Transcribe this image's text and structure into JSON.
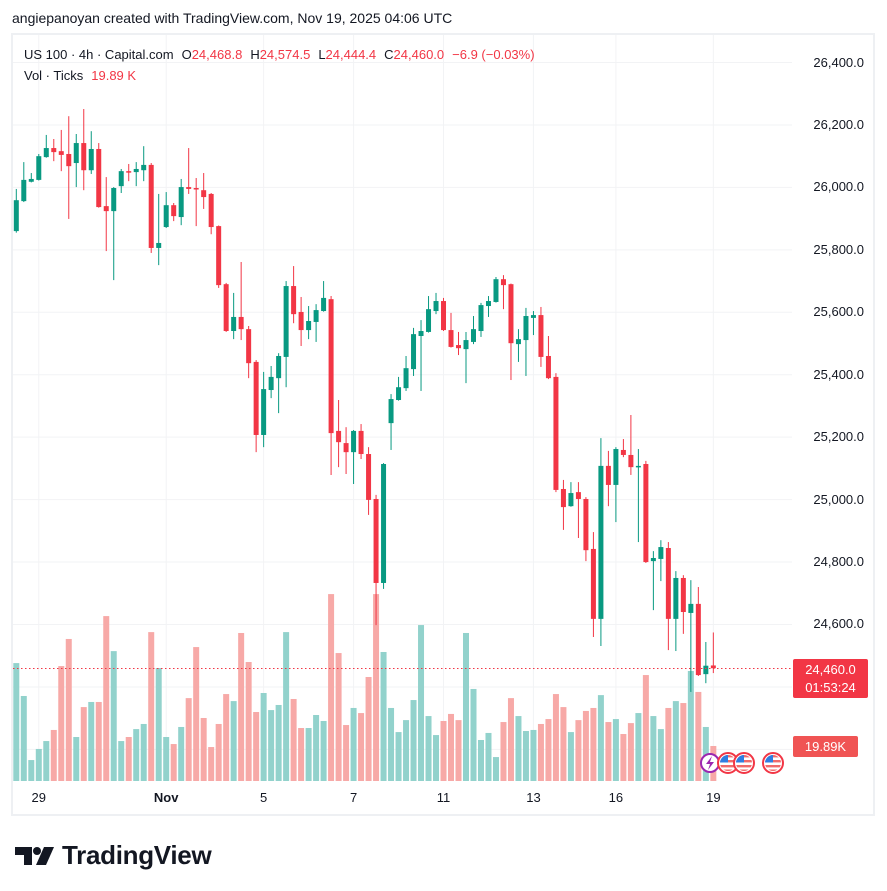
{
  "header": {
    "attribution": "angiepanoyan created with TradingView.com, Nov 19, 2025 04:06 UTC"
  },
  "legend": {
    "symbol": "US 100 · 4h · Capital.com",
    "ohlc": [
      {
        "label": "O",
        "value": "24,468.8"
      },
      {
        "label": "H",
        "value": "24,574.5"
      },
      {
        "label": "L",
        "value": "24,444.4"
      },
      {
        "label": "C",
        "value": "24,460.0"
      }
    ],
    "change": "−6.9 (−0.03%)",
    "volume_label": "Vol · Ticks",
    "volume_value": "19.89 K"
  },
  "price_axis": {
    "ticks": [
      "26,400.0",
      "26,200.0",
      "26,000.0",
      "25,800.0",
      "25,600.0",
      "25,400.0",
      "25,200.0",
      "25,000.0",
      "24,800.0",
      "24,600.0"
    ]
  },
  "time_axis": {
    "ticks": [
      {
        "label": "29",
        "index": 3,
        "bold": false
      },
      {
        "label": "Nov",
        "index": 20,
        "bold": true
      },
      {
        "label": "5",
        "index": 33,
        "bold": false
      },
      {
        "label": "7",
        "index": 45,
        "bold": false
      },
      {
        "label": "11",
        "index": 57,
        "bold": false
      },
      {
        "label": "13",
        "index": 69,
        "bold": false
      },
      {
        "label": "16",
        "index": 80,
        "bold": false
      },
      {
        "label": "19",
        "index": 93,
        "bold": false
      }
    ]
  },
  "current_price": {
    "value": "24,460.0",
    "countdown": "01:53:24"
  },
  "volume_badge": "19.89K",
  "events": [
    {
      "icon": "lightning-icon",
      "x": 699
    },
    {
      "icon": "us-flag-icon",
      "x": 717
    },
    {
      "icon": "us-flag-icon",
      "x": 733
    },
    {
      "icon": "us-flag-icon",
      "x": 762
    }
  ],
  "branding": {
    "logo_text": "TradingView"
  },
  "colors": {
    "up": "#089981",
    "down": "#f23645",
    "volume_up": "#92d2cc",
    "volume_down": "#f7a9a7",
    "price_line": "#f23645",
    "grid": "#f2f3f5"
  },
  "chart_data": {
    "type": "candlestick",
    "title": "US 100 · 4h · Capital.com",
    "xlabel": "",
    "ylabel": "",
    "ylim": [
      24200,
      26400
    ],
    "grid": true,
    "legend_position": "top-left",
    "y_ticks": [
      26400,
      26200,
      26000,
      25800,
      25600,
      25400,
      25200,
      25000,
      24800,
      24600
    ],
    "x_tick_labels": [
      "29",
      "Nov",
      "5",
      "7",
      "11",
      "13",
      "16",
      "19"
    ],
    "last": {
      "open": 24468.8,
      "high": 24574.5,
      "low": 24444.4,
      "close": 24460.0,
      "change": -6.9,
      "change_pct": -0.03,
      "volume_k": 19.89
    },
    "ohlc_fields": [
      "open",
      "high",
      "low",
      "close"
    ],
    "ohlc": [
      [
        25860,
        25995,
        25855,
        25959
      ],
      [
        25956,
        26081,
        25953,
        26024
      ],
      [
        26018,
        26046,
        26016,
        26027
      ],
      [
        26024,
        26107,
        26022,
        26100
      ],
      [
        26097,
        26168,
        26095,
        26126
      ],
      [
        26126,
        26155,
        26084,
        26113
      ],
      [
        26116,
        26184,
        26052,
        26104
      ],
      [
        26107,
        26228,
        25899,
        26068
      ],
      [
        26078,
        26171,
        26001,
        26142
      ],
      [
        26142,
        26251,
        25991,
        26055
      ],
      [
        26055,
        26180,
        26043,
        26123
      ],
      [
        26123,
        26142,
        25935,
        25937
      ],
      [
        25940,
        26033,
        25796,
        25924
      ],
      [
        25924,
        26001,
        25703,
        25998
      ],
      [
        26004,
        26059,
        25982,
        26052
      ],
      [
        26052,
        26075,
        26020,
        26049
      ],
      [
        26049,
        26081,
        26004,
        26059
      ],
      [
        26055,
        26132,
        26020,
        26072
      ],
      [
        26072,
        26078,
        25790,
        25806
      ],
      [
        25806,
        25979,
        25751,
        25822
      ],
      [
        25873,
        25985,
        25870,
        25943
      ],
      [
        25943,
        25950,
        25892,
        25908
      ],
      [
        25905,
        26027,
        25879,
        26001
      ],
      [
        26001,
        26126,
        25979,
        25995
      ],
      [
        25998,
        26030,
        25876,
        25995
      ],
      [
        25991,
        26046,
        25931,
        25969
      ],
      [
        25979,
        25982,
        25850,
        25873
      ],
      [
        25876,
        25878,
        25678,
        25687
      ],
      [
        25690,
        25694,
        25537,
        25540
      ],
      [
        25540,
        25662,
        25514,
        25585
      ],
      [
        25585,
        25761,
        25511,
        25546
      ],
      [
        25546,
        25556,
        25389,
        25437
      ],
      [
        25441,
        25447,
        25152,
        25207
      ],
      [
        25207,
        25409,
        25168,
        25354
      ],
      [
        25351,
        25428,
        25325,
        25393
      ],
      [
        25389,
        25469,
        25277,
        25460
      ],
      [
        25457,
        25700,
        25360,
        25684
      ],
      [
        25684,
        25748,
        25565,
        25594
      ],
      [
        25601,
        25649,
        25492,
        25543
      ],
      [
        25543,
        25620,
        25514,
        25572
      ],
      [
        25569,
        25626,
        25505,
        25607
      ],
      [
        25604,
        25700,
        25602,
        25646
      ],
      [
        25642,
        25652,
        25079,
        25213
      ],
      [
        25220,
        25319,
        25104,
        25184
      ],
      [
        25181,
        25232,
        25082,
        25152
      ],
      [
        25152,
        25223,
        25050,
        25220
      ],
      [
        25220,
        25242,
        25130,
        25146
      ],
      [
        25146,
        25168,
        24951,
        24999
      ],
      [
        25002,
        25015,
        24598,
        24733
      ],
      [
        24733,
        25117,
        24714,
        25114
      ],
      [
        25245,
        25338,
        25159,
        25322
      ],
      [
        25319,
        25393,
        25317,
        25360
      ],
      [
        25357,
        25460,
        25348,
        25421
      ],
      [
        25418,
        25550,
        25396,
        25530
      ],
      [
        25524,
        25575,
        25348,
        25540
      ],
      [
        25537,
        25652,
        25535,
        25610
      ],
      [
        25604,
        25662,
        25594,
        25636
      ],
      [
        25636,
        25646,
        25540,
        25543
      ],
      [
        25543,
        25598,
        25487,
        25489
      ],
      [
        25495,
        25537,
        25463,
        25485
      ],
      [
        25482,
        25537,
        25373,
        25511
      ],
      [
        25505,
        25588,
        25498,
        25546
      ],
      [
        25540,
        25630,
        25521,
        25623
      ],
      [
        25620,
        25652,
        25585,
        25636
      ],
      [
        25633,
        25713,
        25631,
        25706
      ],
      [
        25706,
        25719,
        25610,
        25687
      ],
      [
        25690,
        25692,
        25383,
        25501
      ],
      [
        25498,
        25546,
        25441,
        25514
      ],
      [
        25511,
        25614,
        25396,
        25588
      ],
      [
        25582,
        25604,
        25527,
        25591
      ],
      [
        25591,
        25617,
        25425,
        25457
      ],
      [
        25460,
        25524,
        25386,
        25389
      ],
      [
        25393,
        25405,
        25024,
        25031
      ],
      [
        25034,
        25063,
        24903,
        24976
      ],
      [
        24979,
        25056,
        24977,
        25021
      ],
      [
        25024,
        25056,
        24877,
        25002
      ],
      [
        25002,
        25008,
        24803,
        24838
      ],
      [
        24842,
        24896,
        24560,
        24618
      ],
      [
        24618,
        25197,
        24531,
        25108
      ],
      [
        25108,
        25156,
        24979,
        25047
      ],
      [
        25047,
        25168,
        24928,
        25162
      ],
      [
        25159,
        25194,
        25136,
        25143
      ],
      [
        25143,
        25271,
        25079,
        25104
      ],
      [
        25104,
        25162,
        24864,
        25108
      ],
      [
        25114,
        25124,
        24797,
        24800
      ],
      [
        24803,
        24835,
        24646,
        24813
      ],
      [
        24810,
        24870,
        24739,
        24848
      ],
      [
        24845,
        24864,
        24518,
        24618
      ],
      [
        24618,
        24771,
        24515,
        24749
      ],
      [
        24749,
        24758,
        24570,
        24640
      ],
      [
        24637,
        24742,
        24384,
        24666
      ],
      [
        24666,
        24720,
        24435,
        24438
      ],
      [
        24441,
        24544,
        24412,
        24468
      ],
      [
        24468.8,
        24574.5,
        24444.4,
        24460.0
      ]
    ],
    "volume_unit": "K ticks",
    "volume": [
      67.0,
      48.3,
      11.9,
      18.2,
      22.7,
      29.0,
      65.3,
      80.7,
      25.0,
      42.0,
      44.9,
      44.9,
      93.7,
      73.8,
      22.7,
      25.0,
      29.5,
      32.4,
      84.6,
      64.2,
      25.0,
      21.0,
      30.7,
      47.1,
      76.1,
      35.8,
      19.3,
      32.4,
      49.4,
      45.4,
      84.1,
      67.6,
      39.2,
      50.0,
      40.3,
      43.2,
      84.6,
      46.6,
      30.1,
      30.1,
      37.5,
      34.1,
      106.2,
      72.7,
      31.8,
      41.5,
      38.6,
      59.1,
      106.2,
      73.3,
      41.5,
      27.8,
      34.6,
      46.0,
      88.6,
      36.9,
      26.1,
      34.1,
      38.1,
      34.6,
      84.1,
      52.3,
      23.3,
      27.3,
      13.6,
      33.5,
      47.1,
      36.9,
      28.4,
      29.0,
      32.4,
      35.2,
      49.4,
      42.0,
      27.8,
      34.6,
      39.8,
      41.5,
      48.8,
      33.5,
      35.2,
      26.7,
      32.9,
      38.6,
      60.2,
      36.9,
      29.5,
      41.5,
      45.4,
      44.3,
      62.5,
      50.6,
      30.7,
      19.89
    ],
    "current_price_line": 24460.0
  }
}
